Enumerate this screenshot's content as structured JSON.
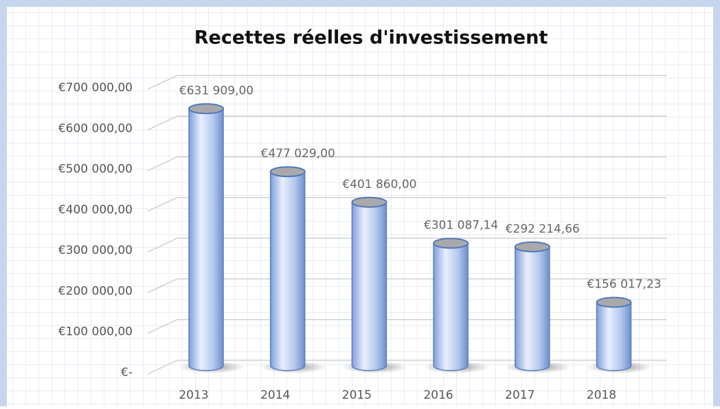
{
  "chart_data": {
    "type": "bar",
    "title": "Recettes réelles d'investissement",
    "categories": [
      "2013",
      "2014",
      "2015",
      "2016",
      "2017",
      "2018"
    ],
    "values": [
      631909,
      477029,
      401860,
      301087.14,
      292214.66,
      156017.23
    ],
    "value_labels": [
      "€631 909,00",
      "€477 029,00",
      "€401 860,00",
      "€301 087,14",
      "€292 214,66",
      "€156 017,23"
    ],
    "color": "#9db7e6",
    "ylim": [
      0,
      700000
    ],
    "yticks": [
      {
        "value": 0,
        "label": "€-"
      },
      {
        "value": 100000,
        "label": "€100 000,00"
      },
      {
        "value": 200000,
        "label": "€200 000,00"
      },
      {
        "value": 300000,
        "label": "€300 000,00"
      },
      {
        "value": 400000,
        "label": "€400 000,00"
      },
      {
        "value": 500000,
        "label": "€500 000,00"
      },
      {
        "value": 600000,
        "label": "€600 000,00"
      },
      {
        "value": 700000,
        "label": "€700 000,00"
      }
    ],
    "grid": true
  }
}
